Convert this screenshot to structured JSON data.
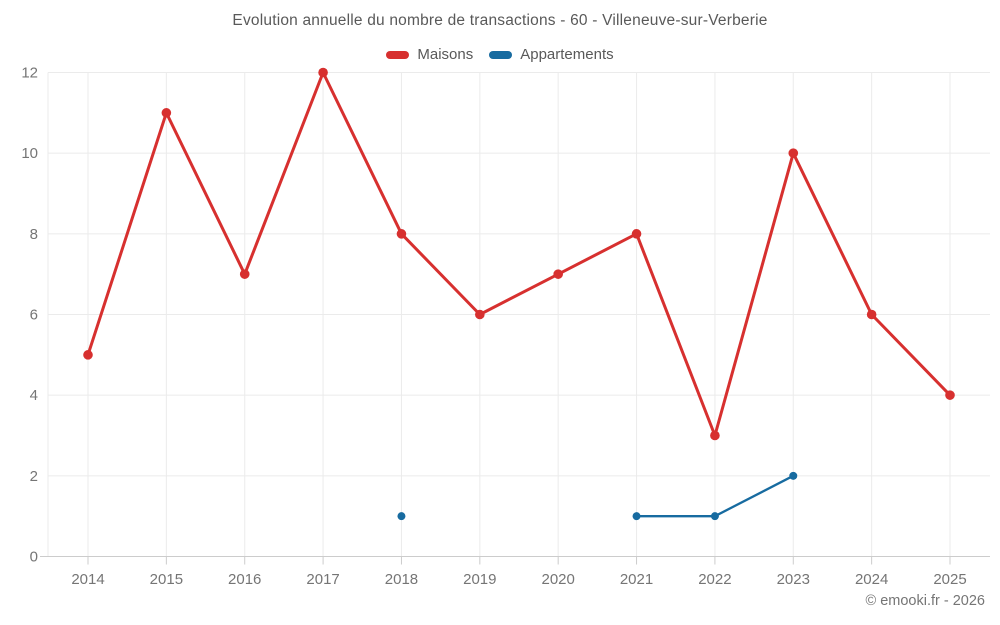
{
  "title": "Evolution annuelle du nombre de transactions - 60 - Villeneuve-sur-Verberie",
  "copyright": "© emooki.fr - 2026",
  "colors": {
    "background": "#ffffff",
    "grid": "#ebebeb",
    "axis": "#cccccc",
    "tick_label": "#757575",
    "title_text": "#595959",
    "maisons_red": "#d7302f",
    "appartements_blue": "#176ba0"
  },
  "chart_data": {
    "type": "line",
    "title": "Evolution annuelle du nombre de transactions - 60 - Villeneuve-sur-Verberie",
    "xlabel": "",
    "ylabel": "",
    "categories": [
      "2014",
      "2015",
      "2016",
      "2017",
      "2018",
      "2019",
      "2020",
      "2021",
      "2022",
      "2023",
      "2024",
      "2025"
    ],
    "series": [
      {
        "name": "Maisons",
        "color": "#d7302f",
        "values": [
          5,
          11,
          7,
          12,
          8,
          6,
          7,
          8,
          3,
          10,
          6,
          4
        ]
      },
      {
        "name": "Appartements",
        "color": "#176ba0",
        "values": [
          null,
          null,
          null,
          null,
          1,
          null,
          null,
          1,
          1,
          2,
          null,
          null
        ]
      }
    ],
    "ylim": [
      0,
      12
    ],
    "yticks": [
      0,
      2,
      4,
      6,
      8,
      10,
      12
    ],
    "grid": true,
    "legend_position": "top"
  }
}
